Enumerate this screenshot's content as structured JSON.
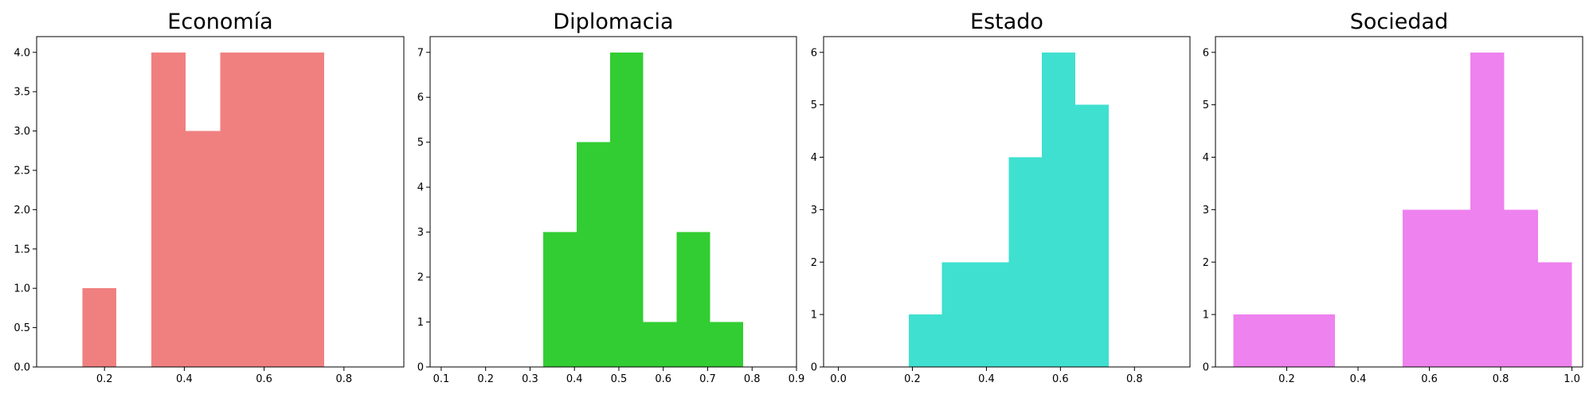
{
  "chart_data": [
    {
      "type": "histogram",
      "title": "Economía",
      "color": "#F08080",
      "xlim": [
        0.03,
        0.95
      ],
      "ylim": [
        0,
        4.2
      ],
      "xticks": [
        0.2,
        0.4,
        0.6,
        0.8
      ],
      "xtick_labels": [
        "0.2",
        "0.4",
        "0.6",
        "0.8"
      ],
      "yticks": [
        0,
        0.5,
        1.0,
        1.5,
        2.0,
        2.5,
        3.0,
        3.5,
        4.0
      ],
      "ytick_labels": [
        "0.0",
        "0.5",
        "1.0",
        "1.5",
        "2.0",
        "2.5",
        "3.0",
        "3.5",
        "4.0"
      ],
      "bins": [
        {
          "x0": 0.145,
          "x1": 0.23,
          "count": 1
        },
        {
          "x0": 0.23,
          "x1": 0.317,
          "count": 0
        },
        {
          "x0": 0.317,
          "x1": 0.403,
          "count": 4
        },
        {
          "x0": 0.403,
          "x1": 0.49,
          "count": 3
        },
        {
          "x0": 0.49,
          "x1": 0.577,
          "count": 4
        },
        {
          "x0": 0.577,
          "x1": 0.663,
          "count": 4
        },
        {
          "x0": 0.663,
          "x1": 0.75,
          "count": 4
        }
      ]
    },
    {
      "type": "histogram",
      "title": "Diplomacia",
      "color": "#32CD32",
      "xlim": [
        0.075,
        0.9
      ],
      "ylim": [
        0,
        7.35
      ],
      "xticks": [
        0.1,
        0.2,
        0.3,
        0.4,
        0.5,
        0.6,
        0.7,
        0.8,
        0.9
      ],
      "xtick_labels": [
        "0.1",
        "0.2",
        "0.3",
        "0.4",
        "0.5",
        "0.6",
        "0.7",
        "0.8",
        "0.9"
      ],
      "yticks": [
        0,
        1,
        2,
        3,
        4,
        5,
        6,
        7
      ],
      "ytick_labels": [
        "0",
        "1",
        "2",
        "3",
        "4",
        "5",
        "6",
        "7"
      ],
      "bins": [
        {
          "x0": 0.33,
          "x1": 0.405,
          "count": 3
        },
        {
          "x0": 0.405,
          "x1": 0.48,
          "count": 5
        },
        {
          "x0": 0.48,
          "x1": 0.555,
          "count": 7
        },
        {
          "x0": 0.555,
          "x1": 0.63,
          "count": 1
        },
        {
          "x0": 0.63,
          "x1": 0.705,
          "count": 3
        },
        {
          "x0": 0.705,
          "x1": 0.78,
          "count": 1
        }
      ]
    },
    {
      "type": "histogram",
      "title": "Estado",
      "color": "#40E0D0",
      "xlim": [
        -0.04,
        0.95
      ],
      "ylim": [
        0,
        6.3
      ],
      "xticks": [
        0.0,
        0.2,
        0.4,
        0.6,
        0.8
      ],
      "xtick_labels": [
        "0.0",
        "0.2",
        "0.4",
        "0.6",
        "0.8"
      ],
      "yticks": [
        0,
        1,
        2,
        3,
        4,
        5,
        6
      ],
      "ytick_labels": [
        "0",
        "1",
        "2",
        "3",
        "4",
        "5",
        "6"
      ],
      "bins": [
        {
          "x0": 0.19,
          "x1": 0.28,
          "count": 1
        },
        {
          "x0": 0.28,
          "x1": 0.37,
          "count": 2
        },
        {
          "x0": 0.37,
          "x1": 0.46,
          "count": 2
        },
        {
          "x0": 0.46,
          "x1": 0.55,
          "count": 4
        },
        {
          "x0": 0.55,
          "x1": 0.64,
          "count": 6
        },
        {
          "x0": 0.64,
          "x1": 0.73,
          "count": 5
        }
      ]
    },
    {
      "type": "histogram",
      "title": "Sociedad",
      "color": "#EE82EE",
      "xlim": [
        0.0,
        1.03
      ],
      "ylim": [
        0,
        6.3
      ],
      "xticks": [
        0.2,
        0.4,
        0.6,
        0.8,
        1.0
      ],
      "xtick_labels": [
        "0.2",
        "0.4",
        "0.6",
        "0.8",
        "1.0"
      ],
      "yticks": [
        0,
        1,
        2,
        3,
        4,
        5,
        6
      ],
      "ytick_labels": [
        "0",
        "1",
        "2",
        "3",
        "4",
        "5",
        "6"
      ],
      "bins": [
        {
          "x0": 0.05,
          "x1": 0.145,
          "count": 1
        },
        {
          "x0": 0.145,
          "x1": 0.24,
          "count": 1
        },
        {
          "x0": 0.24,
          "x1": 0.335,
          "count": 1
        },
        {
          "x0": 0.335,
          "x1": 0.43,
          "count": 0
        },
        {
          "x0": 0.43,
          "x1": 0.525,
          "count": 0
        },
        {
          "x0": 0.525,
          "x1": 0.62,
          "count": 3
        },
        {
          "x0": 0.62,
          "x1": 0.715,
          "count": 3
        },
        {
          "x0": 0.715,
          "x1": 0.81,
          "count": 6
        },
        {
          "x0": 0.81,
          "x1": 0.905,
          "count": 3
        },
        {
          "x0": 0.905,
          "x1": 1.0,
          "count": 2
        }
      ]
    }
  ]
}
